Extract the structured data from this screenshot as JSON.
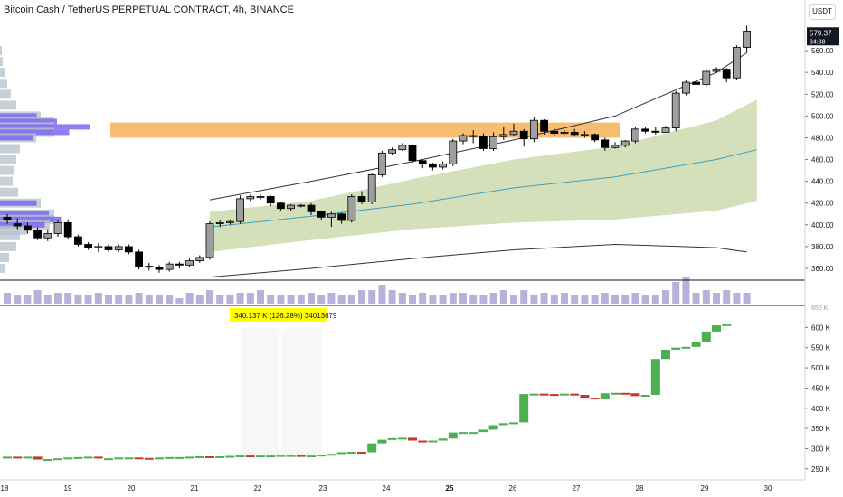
{
  "header": {
    "title": "Bitcoin Cash / TetherUS PERPETUAL CONTRACT, 4h, BINANCE",
    "currency_button": "USDT"
  },
  "colors": {
    "up": "#9e9e9e",
    "down": "#000000",
    "zone": "#f5a742",
    "band_fill": "#c5d6a1",
    "mid_line": "#3ea0c4",
    "profile": "#7b68ee",
    "profile_light": "#b8c4cc",
    "bar_up": "#4caf50",
    "bar_down": "#c0392b",
    "volume": "#a9a4d6"
  },
  "chart_data": [
    {
      "type": "candlestick",
      "name": "price",
      "ylim": [
        350,
        590
      ],
      "yticks": [
        360,
        380,
        400,
        420,
        440,
        460,
        480,
        500,
        520,
        540,
        560
      ],
      "last_price_label": "579.37",
      "countdown_label": "34:38",
      "x_labels": [
        "18",
        "19",
        "20",
        "21",
        "22",
        "23",
        "24",
        "25",
        "26",
        "27",
        "28",
        "29",
        "30"
      ],
      "candles": [
        [
          407,
          405,
          410,
          401
        ],
        [
          401,
          399,
          406,
          396
        ],
        [
          399,
          395,
          402,
          392
        ],
        [
          395,
          388,
          398,
          386
        ],
        [
          388,
          392,
          396,
          385
        ],
        [
          392,
          402,
          404,
          389
        ],
        [
          402,
          389,
          405,
          387
        ],
        [
          389,
          382,
          391,
          380
        ],
        [
          382,
          379,
          384,
          377
        ],
        [
          379,
          380,
          383,
          375
        ],
        [
          380,
          377,
          382,
          375
        ],
        [
          377,
          380,
          382,
          375
        ],
        [
          380,
          375,
          382,
          373
        ],
        [
          375,
          362,
          377,
          359
        ],
        [
          362,
          361,
          365,
          358
        ],
        [
          361,
          359,
          363,
          356
        ],
        [
          359,
          364,
          366,
          357
        ],
        [
          364,
          363,
          366,
          360
        ],
        [
          363,
          367,
          369,
          361
        ],
        [
          367,
          370,
          372,
          365
        ],
        [
          370,
          401,
          403,
          368
        ],
        [
          401,
          402,
          404,
          398
        ],
        [
          402,
          403,
          405,
          400
        ],
        [
          403,
          424,
          427,
          401
        ],
        [
          424,
          426,
          428,
          422
        ],
        [
          426,
          426,
          428,
          423
        ],
        [
          426,
          420,
          427,
          417
        ],
        [
          420,
          415,
          421,
          413
        ],
        [
          415,
          418,
          419,
          413
        ],
        [
          418,
          418,
          419,
          416
        ],
        [
          418,
          412,
          420,
          409
        ],
        [
          412,
          407,
          413,
          404
        ],
        [
          407,
          410,
          412,
          398
        ],
        [
          410,
          404,
          411,
          401
        ],
        [
          404,
          426,
          428,
          402
        ],
        [
          426,
          421,
          431,
          419
        ],
        [
          421,
          446,
          448,
          419
        ],
        [
          446,
          466,
          468,
          444
        ],
        [
          466,
          469,
          471,
          464
        ],
        [
          469,
          473,
          475,
          468
        ],
        [
          473,
          459,
          474,
          457
        ],
        [
          459,
          456,
          460,
          452
        ],
        [
          456,
          453,
          457,
          450
        ],
        [
          453,
          456,
          458,
          451
        ],
        [
          456,
          477,
          479,
          454
        ],
        [
          477,
          482,
          484,
          474
        ],
        [
          482,
          481,
          487,
          475
        ],
        [
          481,
          470,
          484,
          468
        ],
        [
          470,
          481,
          485,
          468
        ],
        [
          481,
          483,
          490,
          478
        ],
        [
          483,
          486,
          493,
          482
        ],
        [
          486,
          479,
          488,
          472
        ],
        [
          479,
          496,
          499,
          476
        ],
        [
          496,
          486,
          497,
          483
        ],
        [
          486,
          484,
          489,
          482
        ],
        [
          484,
          485,
          487,
          483
        ],
        [
          485,
          483,
          488,
          481
        ],
        [
          483,
          483,
          486,
          480
        ],
        [
          483,
          478,
          484,
          476
        ],
        [
          478,
          471,
          480,
          468
        ],
        [
          471,
          473,
          476,
          470
        ],
        [
          473,
          477,
          478,
          471
        ],
        [
          477,
          488,
          490,
          475
        ],
        [
          488,
          486,
          490,
          484
        ],
        [
          486,
          485,
          490,
          483
        ],
        [
          485,
          489,
          491,
          485
        ],
        [
          489,
          521,
          523,
          486
        ],
        [
          521,
          531,
          533,
          519
        ],
        [
          531,
          529,
          532,
          528
        ],
        [
          529,
          541,
          543,
          527
        ],
        [
          541,
          543,
          545,
          539
        ],
        [
          543,
          535,
          544,
          531
        ],
        [
          535,
          563,
          565,
          533
        ],
        [
          563,
          578,
          583,
          558
        ]
      ],
      "zone": [
        480,
        494
      ],
      "envelope_upper": [
        [
          20,
          423
        ],
        [
          30,
          440
        ],
        [
          40,
          458
        ],
        [
          50,
          478
        ],
        [
          60,
          500
        ],
        [
          70,
          540
        ],
        [
          73,
          558
        ]
      ],
      "envelope_lower": [
        [
          20,
          352
        ],
        [
          30,
          360
        ],
        [
          40,
          369
        ],
        [
          50,
          377
        ],
        [
          60,
          382
        ],
        [
          70,
          379
        ],
        [
          73,
          375
        ]
      ],
      "band_upper": [
        [
          20,
          412
        ],
        [
          30,
          422
        ],
        [
          40,
          442
        ],
        [
          50,
          460
        ],
        [
          60,
          472
        ],
        [
          70,
          496
        ],
        [
          74,
          515
        ]
      ],
      "band_mid": [
        [
          20,
          398
        ],
        [
          30,
          408
        ],
        [
          40,
          419
        ],
        [
          50,
          434
        ],
        [
          60,
          444
        ],
        [
          70,
          460
        ],
        [
          74,
          469
        ]
      ],
      "band_lower": [
        [
          20,
          375
        ],
        [
          30,
          386
        ],
        [
          40,
          396
        ],
        [
          50,
          402
        ],
        [
          60,
          405
        ],
        [
          70,
          413
        ],
        [
          74,
          422
        ]
      ]
    },
    {
      "type": "volume",
      "name": "volume",
      "values": [
        4,
        3,
        3,
        5,
        3,
        4,
        4,
        3,
        3,
        4,
        3,
        3,
        3,
        4,
        3,
        3,
        3,
        2,
        4,
        3,
        5,
        3,
        3,
        4,
        4,
        5,
        3,
        3,
        3,
        3,
        4,
        3,
        4,
        3,
        3,
        5,
        5,
        7,
        5,
        4,
        3,
        4,
        3,
        3,
        4,
        4,
        3,
        3,
        4,
        5,
        3,
        5,
        3,
        4,
        3,
        4,
        3,
        3,
        3,
        4,
        3,
        3,
        4,
        3,
        3,
        5,
        8,
        10,
        4,
        5,
        4,
        5,
        4,
        4
      ]
    },
    {
      "type": "bar",
      "name": "cumulative",
      "ylim": [
        225,
        650
      ],
      "yticks": [
        250,
        300,
        350,
        400,
        450,
        500,
        550,
        600
      ],
      "ytick_labels": [
        "250 K",
        "300 K",
        "350 K",
        "400 K",
        "450 K",
        "500 K",
        "550 K",
        "600 K"
      ],
      "top_tick_label": "650 K",
      "measure_label": "340.137 K (126.28%) 34013679",
      "bars": [
        [
          280,
          280
        ],
        [
          280,
          279
        ],
        [
          279,
          280
        ],
        [
          280,
          273
        ],
        [
          273,
          274
        ],
        [
          274,
          276
        ],
        [
          276,
          278
        ],
        [
          278,
          279
        ],
        [
          279,
          280
        ],
        [
          280,
          276
        ],
        [
          276,
          276
        ],
        [
          276,
          278
        ],
        [
          278,
          278
        ],
        [
          278,
          277
        ],
        [
          277,
          276
        ],
        [
          276,
          278
        ],
        [
          278,
          279
        ],
        [
          279,
          279
        ],
        [
          279,
          280
        ],
        [
          280,
          281
        ],
        [
          281,
          280
        ],
        [
          280,
          281
        ],
        [
          281,
          282
        ],
        [
          282,
          283
        ],
        [
          283,
          282
        ],
        [
          282,
          283
        ],
        [
          283,
          283
        ],
        [
          283,
          284
        ],
        [
          284,
          284
        ],
        [
          284,
          283
        ],
        [
          283,
          283
        ],
        [
          283,
          285
        ],
        [
          285,
          287
        ],
        [
          287,
          291
        ],
        [
          291,
          292
        ],
        [
          292,
          291
        ],
        [
          291,
          313
        ],
        [
          313,
          322
        ],
        [
          322,
          326
        ],
        [
          326,
          327
        ],
        [
          327,
          320
        ],
        [
          320,
          317
        ],
        [
          317,
          320
        ],
        [
          320,
          325
        ],
        [
          325,
          340
        ],
        [
          340,
          341
        ],
        [
          341,
          341
        ],
        [
          341,
          347
        ],
        [
          347,
          358
        ],
        [
          358,
          363
        ],
        [
          363,
          365
        ],
        [
          365,
          435
        ],
        [
          435,
          436
        ],
        [
          436,
          435
        ],
        [
          435,
          434
        ],
        [
          434,
          436
        ],
        [
          436,
          433
        ],
        [
          433,
          426
        ],
        [
          426,
          422
        ],
        [
          422,
          437
        ],
        [
          437,
          438
        ],
        [
          438,
          437
        ],
        [
          437,
          430
        ],
        [
          430,
          433
        ],
        [
          433,
          522
        ],
        [
          522,
          545
        ],
        [
          545,
          550
        ],
        [
          550,
          552
        ],
        [
          552,
          563
        ],
        [
          563,
          590
        ],
        [
          590,
          605
        ],
        [
          605,
          608
        ]
      ]
    }
  ]
}
